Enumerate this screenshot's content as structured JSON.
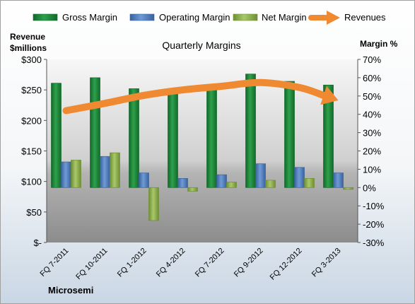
{
  "chart_data": {
    "type": "bar",
    "title": "Quarterly Margins",
    "company": "Microsemi",
    "left_axis_label": [
      "Revenue",
      "$millions"
    ],
    "right_axis_label": "Margin %",
    "left_axis_ticks": [
      "$300",
      "$250",
      "$200",
      "$150",
      "$100",
      "$50",
      "$-"
    ],
    "right_axis_ticks": [
      "70%",
      "60%",
      "50%",
      "40%",
      "30%",
      "20%",
      "10%",
      "0%",
      "-10%",
      "-20%",
      "-30%"
    ],
    "left_ylim": [
      0,
      300
    ],
    "right_ylim": [
      -30,
      70
    ],
    "categories": [
      "FQ 7-2011",
      "FQ 10-2011",
      "FQ 1-2012",
      "FQ 4-2012",
      "FQ 7-2012",
      "FQ 9-2012",
      "FQ 12-2012",
      "FQ 3-2013"
    ],
    "series": [
      {
        "name": "Gross Margin",
        "axis": "right",
        "color": "#1e8a3c",
        "values": [
          57,
          60,
          54,
          54,
          55,
          62,
          58,
          56
        ]
      },
      {
        "name": "Operating Margin",
        "axis": "right",
        "color": "#4f7fc0",
        "values": [
          14,
          17,
          8,
          5,
          7,
          13,
          11,
          8
        ]
      },
      {
        "name": "Net Margin",
        "axis": "right",
        "color": "#93b556",
        "values": [
          15,
          19,
          -18,
          -2,
          3,
          4,
          5,
          -1
        ]
      },
      {
        "name": "Revenues",
        "axis": "left",
        "type": "line",
        "color": "#ef8a33",
        "values": [
          216,
          228,
          241,
          250,
          256,
          262,
          254,
          233
        ]
      }
    ],
    "legend_position": "top",
    "grid": false
  }
}
